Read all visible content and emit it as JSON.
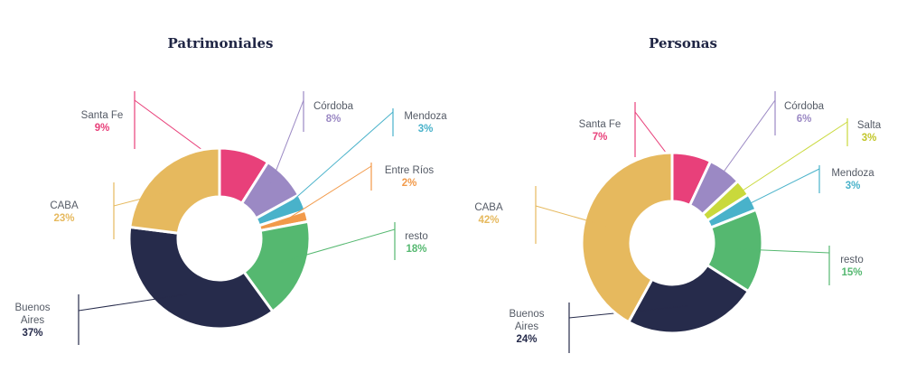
{
  "chart_data": [
    {
      "type": "pie",
      "donut": true,
      "title": "Patrimoniales",
      "slices": [
        {
          "label": "Santa Fe",
          "display_value": "9%",
          "value": 9,
          "color": "#e8407a"
        },
        {
          "label": "Córdoba",
          "display_value": "8%",
          "value": 8,
          "color": "#9b89c4"
        },
        {
          "label": "Mendoza",
          "display_value": "3%",
          "value": 3,
          "color": "#49b2ca"
        },
        {
          "label": "Entre Ríos",
          "display_value": "2%",
          "value": 2,
          "color": "#f29a4a"
        },
        {
          "label": "resto",
          "display_value": "18%",
          "value": 18,
          "color": "#55b870"
        },
        {
          "label": "Buenos\nAires",
          "display_value": "37%",
          "value": 37,
          "color": "#262b4b"
        },
        {
          "label": "CABA",
          "display_value": "23%",
          "value": 23,
          "color": "#e6b95e"
        }
      ]
    },
    {
      "type": "pie",
      "donut": true,
      "title": "Personas",
      "slices": [
        {
          "label": "Santa Fe",
          "display_value": "7%",
          "value": 7,
          "color": "#e8407a"
        },
        {
          "label": "Córdoba",
          "display_value": "6%",
          "value": 6,
          "color": "#9b89c4"
        },
        {
          "label": "Salta",
          "display_value": "3%",
          "value": 3,
          "color": "#c9d93c"
        },
        {
          "label": "Mendoza",
          "display_value": "3%",
          "value": 3,
          "color": "#49b2ca"
        },
        {
          "label": "resto",
          "display_value": "15%",
          "value": 15,
          "color": "#55b870"
        },
        {
          "label": "Buenos\nAires",
          "display_value": "24%",
          "value": 24,
          "color": "#262b4b"
        },
        {
          "label": "CABA",
          "display_value": "42%",
          "value": 42,
          "color": "#e6b95e"
        }
      ]
    }
  ]
}
